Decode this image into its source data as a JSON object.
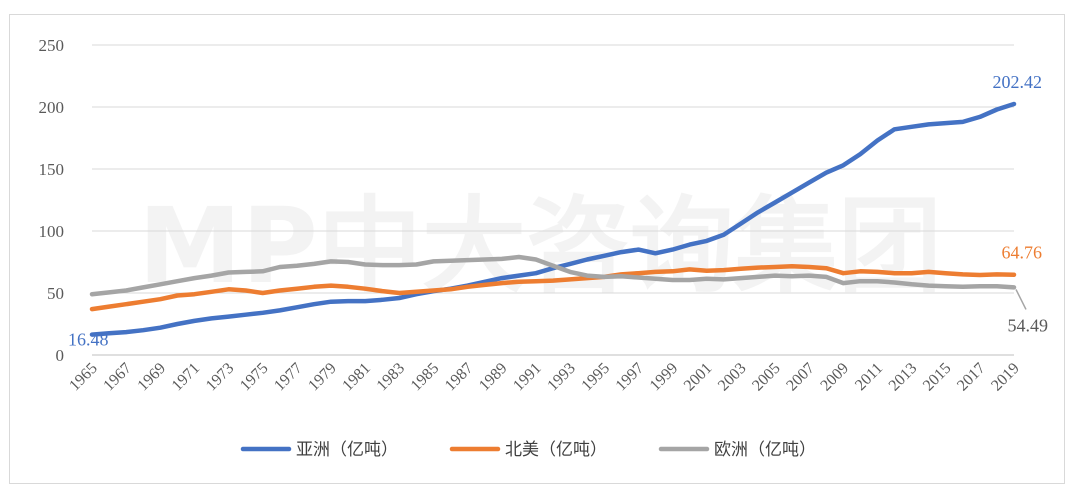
{
  "watermark": "MP中大咨询集团",
  "chart_data": {
    "type": "line",
    "title": "",
    "xlabel": "",
    "ylabel": "",
    "ylim": [
      0,
      250
    ],
    "yticks": [
      "0",
      "50",
      "100",
      "150",
      "200",
      "250"
    ],
    "grid": "horizontal",
    "legend_position": "bottom",
    "x_tick_labels": [
      "1965",
      "1967",
      "1969",
      "1971",
      "1973",
      "1975",
      "1977",
      "1979",
      "1981",
      "1983",
      "1985",
      "1987",
      "1989",
      "1991",
      "1993",
      "1995",
      "1997",
      "1999",
      "2001",
      "2003",
      "2005",
      "2007",
      "2009",
      "2011",
      "2013",
      "2015",
      "2017",
      "2019"
    ],
    "x": [
      1965,
      1966,
      1967,
      1968,
      1969,
      1970,
      1971,
      1972,
      1973,
      1974,
      1975,
      1976,
      1977,
      1978,
      1979,
      1980,
      1981,
      1982,
      1983,
      1984,
      1985,
      1986,
      1987,
      1988,
      1989,
      1990,
      1991,
      1992,
      1993,
      1994,
      1995,
      1996,
      1997,
      1998,
      1999,
      2000,
      2001,
      2002,
      2003,
      2004,
      2005,
      2006,
      2007,
      2008,
      2009,
      2010,
      2011,
      2012,
      2013,
      2014,
      2015,
      2016,
      2017,
      2018,
      2019
    ],
    "series": [
      {
        "name": "亚洲（亿吨）",
        "color": "#4472c4",
        "values": [
          16.48,
          17.5,
          18.5,
          20,
          22,
          25,
          27.5,
          29.5,
          31,
          32.5,
          34,
          36,
          38.5,
          41,
          43,
          43.5,
          43.5,
          44.5,
          46,
          49,
          51.5,
          53.5,
          56,
          59,
          62,
          64,
          66,
          70,
          73.5,
          77,
          80,
          83,
          85,
          82,
          85,
          89,
          92,
          97,
          106,
          115,
          123,
          131,
          139,
          147,
          153,
          162,
          173,
          182,
          184,
          186,
          187,
          188,
          192,
          198,
          202.42
        ],
        "end_label": "202.42",
        "start_label": "16.48"
      },
      {
        "name": "北美（亿吨）",
        "color": "#ed7d31",
        "values": [
          37,
          39,
          41,
          43,
          45,
          48,
          49,
          51,
          53,
          52,
          50,
          52,
          53.5,
          55,
          56,
          55,
          53.5,
          51.5,
          50,
          51,
          52,
          53,
          55,
          56.5,
          58,
          59,
          59.5,
          60,
          61,
          62,
          63,
          65,
          66,
          67,
          67.5,
          69,
          68,
          68.5,
          69.5,
          70.5,
          71,
          71.5,
          71,
          70,
          66,
          67.5,
          67,
          66,
          66,
          67,
          66,
          65,
          64.5,
          65,
          64.76
        ],
        "end_label": "64.76"
      },
      {
        "name": "欧洲（亿吨）",
        "color": "#a5a5a5",
        "values": [
          49,
          50.5,
          52,
          54.5,
          57,
          59.5,
          62,
          64,
          66.5,
          67,
          67.5,
          71,
          72,
          73.5,
          75.5,
          75,
          73,
          72.5,
          72.5,
          73,
          75.5,
          76,
          76.5,
          77,
          77.5,
          79,
          77,
          72,
          67,
          64,
          63,
          63.5,
          62.5,
          61.5,
          60.5,
          60.5,
          61.5,
          61,
          62,
          63,
          64,
          63.5,
          64,
          63,
          58,
          59.5,
          59.5,
          58.5,
          57,
          56,
          55.5,
          55,
          55.5,
          55.5,
          54.49
        ],
        "end_label": "54.49"
      }
    ]
  }
}
